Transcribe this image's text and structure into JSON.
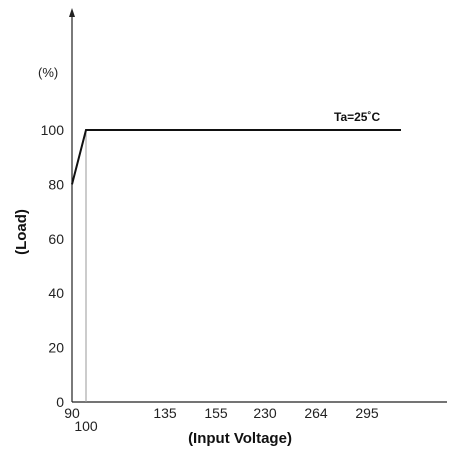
{
  "chart_data": {
    "type": "line",
    "title": "",
    "xlabel": "(Input Voltage)",
    "ylabel": "(Load)",
    "y_unit": "(%)",
    "x_ticks": [
      "90",
      "100",
      "135",
      "155",
      "230",
      "264",
      "295"
    ],
    "y_ticks": [
      "0",
      "20",
      "40",
      "60",
      "80",
      "100"
    ],
    "ylim": [
      0,
      100
    ],
    "grid": false,
    "annotation": "Ta=25˚C",
    "series": [
      {
        "x": [
          "90",
          "100",
          "295"
        ],
        "y": [
          80,
          100,
          100
        ]
      }
    ],
    "guide_line": {
      "x": "100"
    }
  }
}
